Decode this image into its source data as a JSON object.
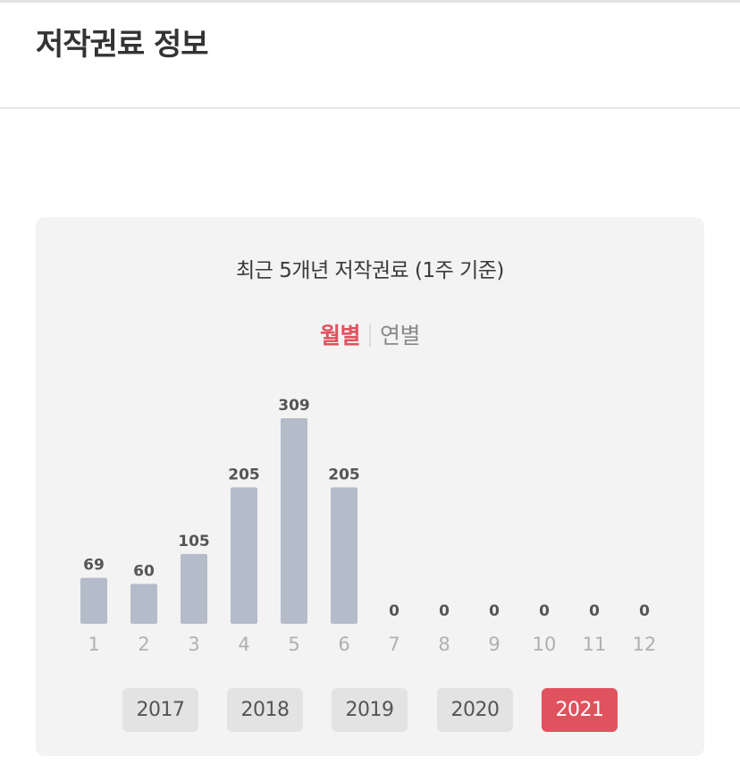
{
  "header": {
    "title": "저작권료 정보"
  },
  "card": {
    "title": "최근 5개년 저작권료 (1주 기준)",
    "period_tabs": {
      "monthly": "월별",
      "yearly": "연별",
      "selected": "monthly"
    }
  },
  "years": [
    {
      "label": "2017",
      "active": false
    },
    {
      "label": "2018",
      "active": false
    },
    {
      "label": "2019",
      "active": false
    },
    {
      "label": "2020",
      "active": false
    },
    {
      "label": "2021",
      "active": true
    }
  ],
  "colors": {
    "bar": "#b4bbc9",
    "accent": "#e0525e",
    "value_label": "#555555",
    "tick_label": "#b0b0b0"
  },
  "chart_data": {
    "type": "bar",
    "categories": [
      "1",
      "2",
      "3",
      "4",
      "5",
      "6",
      "7",
      "8",
      "9",
      "10",
      "11",
      "12"
    ],
    "values": [
      69,
      60,
      105,
      205,
      309,
      205,
      0,
      0,
      0,
      0,
      0,
      0
    ],
    "title": "",
    "xlabel": "",
    "ylabel": "",
    "ylim": [
      0,
      309
    ],
    "grid": false,
    "legend": "none"
  }
}
